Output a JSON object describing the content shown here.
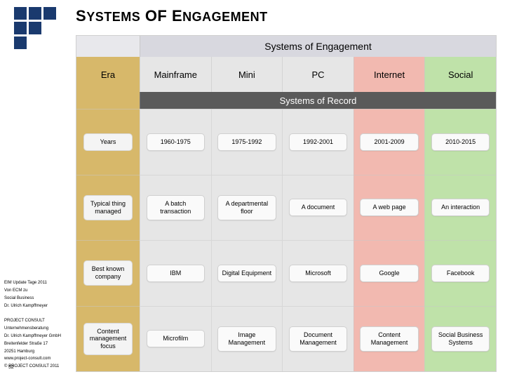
{
  "title_parts": {
    "s": "S",
    "ystems": "YSTEMS",
    "of": " OF ",
    "e": "E",
    "ngagement": "NGAGEMENT"
  },
  "eng_header": "Systems of Engagement",
  "rec_header": "Systems of Record",
  "columns": [
    {
      "key": "era",
      "label": "Era",
      "bg": "#d7b86a",
      "pill_bg": "#f4f4f4"
    },
    {
      "key": "mainframe",
      "label": "Mainframe",
      "bg": "#e6e6e6",
      "pill_bg": "#fafafa"
    },
    {
      "key": "mini",
      "label": "Mini",
      "bg": "#e6e6e6",
      "pill_bg": "#fafafa"
    },
    {
      "key": "pc",
      "label": "PC",
      "bg": "#e6e6e6",
      "pill_bg": "#fafafa"
    },
    {
      "key": "internet",
      "label": "Internet",
      "bg": "#f2b9b0",
      "pill_bg": "#fafafa"
    },
    {
      "key": "social",
      "label": "Social",
      "bg": "#bfe2a9",
      "pill_bg": "#fafafa"
    }
  ],
  "rows": [
    {
      "label": "Years",
      "cells": [
        "1960-1975",
        "1975-1992",
        "1992-2001",
        "2001-2009",
        "2010-2015"
      ]
    },
    {
      "label": "Typical thing managed",
      "cells": [
        "A batch transaction",
        "A departmental floor",
        "A document",
        "A web page",
        "An interaction"
      ]
    },
    {
      "label": "Best known company",
      "cells": [
        "IBM",
        "Digital Equipment",
        "Microsoft",
        "Google",
        "Facebook"
      ]
    },
    {
      "label": "Content management focus",
      "cells": [
        "Microfilm",
        "Image Management",
        "Document Management",
        "Content Management",
        "Social Business Systems"
      ]
    }
  ],
  "sidebar": {
    "lines": [
      "EIM Update Tage 2011",
      "Von ECM zu",
      "Social Business",
      "Dr. Ulrich Kampffmeyer",
      "",
      "PROJECT   CONSULT",
      "Unternehmensberatung",
      "Dr. Ulrich Kampffmeyer GmbH",
      "Breitenfelder Straße 17",
      "20251 Hamburg",
      "www.project-consult.com",
      "© PROJECT CONSULT 2011"
    ],
    "page": "52"
  },
  "logo": {
    "fg": "#1a3a6e",
    "bg": "#ffffff"
  },
  "style": {
    "eng_header_bg": "#d8d8df",
    "rec_header_bg": "#5a5a5a",
    "rec_header_fg": "#ffffff",
    "grid_color": "#d0d0d0",
    "title_fontsize": 22,
    "cell_fontsize": 9
  }
}
